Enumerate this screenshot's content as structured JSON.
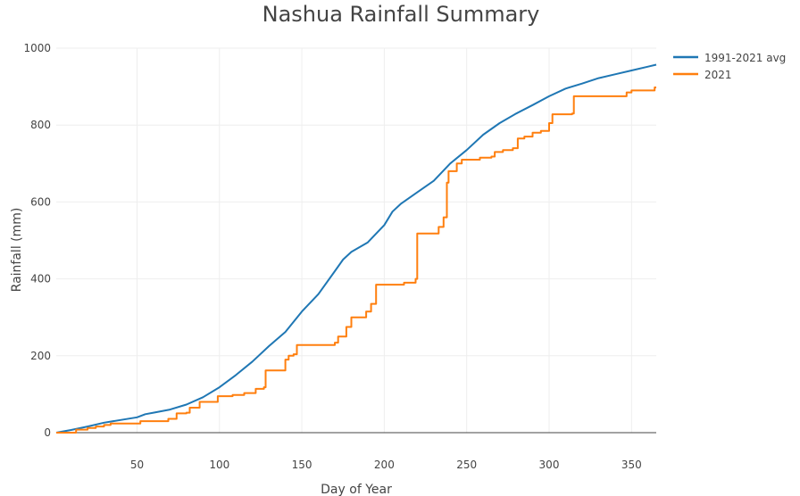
{
  "chart_data": {
    "type": "line",
    "title": "Nashua Rainfall Summary",
    "xlabel": "Day of Year",
    "ylabel": "Rainfall (mm)",
    "xlim": [
      1,
      365
    ],
    "ylim": [
      0,
      1000
    ],
    "x_ticks": [
      50,
      100,
      150,
      200,
      250,
      300,
      350
    ],
    "y_ticks": [
      0,
      200,
      400,
      600,
      800,
      1000
    ],
    "grid": true,
    "legend_position": "top-right",
    "series": [
      {
        "name": "1991-2021 avg",
        "color": "#1f77b4",
        "step": false,
        "points": [
          [
            1,
            0
          ],
          [
            10,
            7
          ],
          [
            20,
            16
          ],
          [
            30,
            26
          ],
          [
            40,
            33
          ],
          [
            50,
            40
          ],
          [
            55,
            48
          ],
          [
            60,
            52
          ],
          [
            70,
            60
          ],
          [
            80,
            73
          ],
          [
            90,
            92
          ],
          [
            100,
            118
          ],
          [
            110,
            150
          ],
          [
            120,
            185
          ],
          [
            130,
            225
          ],
          [
            140,
            262
          ],
          [
            150,
            315
          ],
          [
            160,
            360
          ],
          [
            170,
            420
          ],
          [
            175,
            450
          ],
          [
            180,
            470
          ],
          [
            190,
            495
          ],
          [
            200,
            540
          ],
          [
            205,
            575
          ],
          [
            210,
            595
          ],
          [
            220,
            625
          ],
          [
            230,
            655
          ],
          [
            240,
            700
          ],
          [
            250,
            735
          ],
          [
            260,
            775
          ],
          [
            270,
            805
          ],
          [
            280,
            830
          ],
          [
            290,
            852
          ],
          [
            300,
            875
          ],
          [
            310,
            895
          ],
          [
            320,
            908
          ],
          [
            330,
            922
          ],
          [
            340,
            932
          ],
          [
            350,
            942
          ],
          [
            360,
            952
          ],
          [
            365,
            957
          ]
        ]
      },
      {
        "name": "2021",
        "color": "#ff7f0e",
        "step": true,
        "points": [
          [
            1,
            0
          ],
          [
            12,
            0
          ],
          [
            13,
            8
          ],
          [
            20,
            12
          ],
          [
            25,
            16
          ],
          [
            30,
            20
          ],
          [
            34,
            24
          ],
          [
            51,
            24
          ],
          [
            52,
            30
          ],
          [
            68,
            30
          ],
          [
            69,
            36
          ],
          [
            73,
            36
          ],
          [
            74,
            50
          ],
          [
            80,
            52
          ],
          [
            82,
            65
          ],
          [
            88,
            80
          ],
          [
            96,
            80
          ],
          [
            99,
            95
          ],
          [
            108,
            98
          ],
          [
            115,
            103
          ],
          [
            122,
            114
          ],
          [
            127,
            118
          ],
          [
            128,
            162
          ],
          [
            138,
            162
          ],
          [
            140,
            190
          ],
          [
            142,
            200
          ],
          [
            145,
            204
          ],
          [
            147,
            228
          ],
          [
            165,
            228
          ],
          [
            170,
            234
          ],
          [
            172,
            250
          ],
          [
            177,
            275
          ],
          [
            180,
            300
          ],
          [
            187,
            300
          ],
          [
            189,
            315
          ],
          [
            192,
            335
          ],
          [
            195,
            385
          ],
          [
            210,
            385
          ],
          [
            212,
            390
          ],
          [
            218,
            390
          ],
          [
            219,
            400
          ],
          [
            220,
            518
          ],
          [
            231,
            518
          ],
          [
            233,
            535
          ],
          [
            236,
            560
          ],
          [
            238,
            650
          ],
          [
            239,
            680
          ],
          [
            244,
            700
          ],
          [
            247,
            710
          ],
          [
            255,
            710
          ],
          [
            258,
            715
          ],
          [
            265,
            718
          ],
          [
            267,
            730
          ],
          [
            272,
            735
          ],
          [
            278,
            740
          ],
          [
            281,
            765
          ],
          [
            285,
            770
          ],
          [
            290,
            780
          ],
          [
            295,
            785
          ],
          [
            300,
            805
          ],
          [
            302,
            828
          ],
          [
            314,
            830
          ],
          [
            315,
            875
          ],
          [
            345,
            875
          ],
          [
            347,
            885
          ],
          [
            350,
            890
          ],
          [
            362,
            890
          ],
          [
            364,
            898
          ],
          [
            365,
            898
          ]
        ]
      }
    ]
  }
}
